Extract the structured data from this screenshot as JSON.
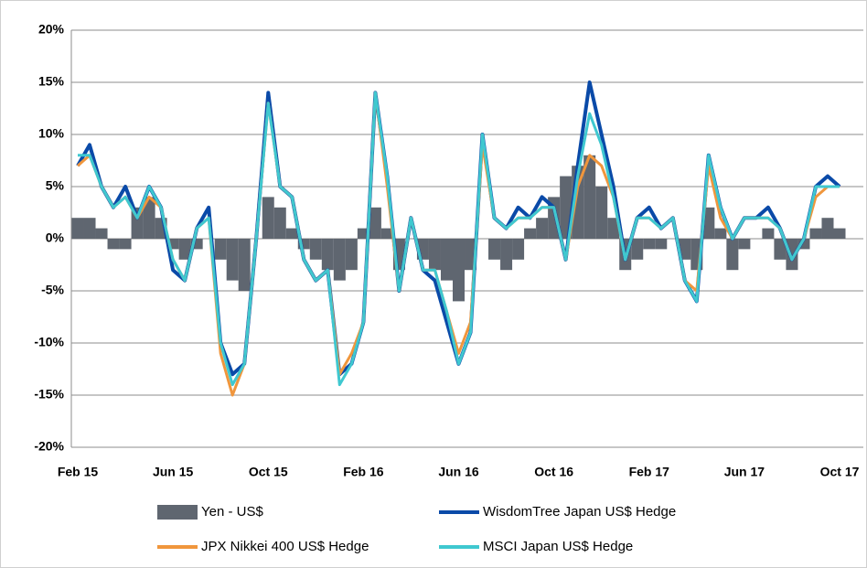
{
  "chart_data": {
    "type": "line",
    "categories": [
      "Feb 15",
      null,
      null,
      null,
      null,
      null,
      null,
      null,
      "Jun 15",
      null,
      null,
      null,
      null,
      null,
      null,
      null,
      "Oct 15",
      null,
      null,
      null,
      null,
      null,
      null,
      null,
      "Feb 16",
      null,
      null,
      null,
      null,
      null,
      null,
      null,
      "Jun 16",
      null,
      null,
      null,
      null,
      null,
      null,
      null,
      "Oct 16",
      null,
      null,
      null,
      null,
      null,
      null,
      null,
      "Feb 17",
      null,
      null,
      null,
      null,
      null,
      null,
      null,
      "Jun 17",
      null,
      null,
      null,
      null,
      null,
      null,
      null,
      "Oct 17"
    ],
    "series": [
      {
        "name": "Yen - US$",
        "type": "bar",
        "color": "#5f6670",
        "values": [
          2,
          2,
          1,
          -1,
          -1,
          3,
          4,
          2,
          -1,
          -2,
          -1,
          0,
          -2,
          -4,
          -5,
          0,
          4,
          3,
          1,
          -1,
          -2,
          -3,
          -4,
          -3,
          1,
          3,
          1,
          -3,
          0,
          -2,
          -3,
          -4,
          -6,
          -3,
          0,
          -2,
          -3,
          -2,
          1,
          2,
          4,
          6,
          7,
          8,
          5,
          2,
          -3,
          -2,
          -1,
          -1,
          0,
          -2,
          -3,
          3,
          1,
          -3,
          -1,
          0,
          1,
          -2,
          -3,
          -1,
          1,
          2,
          1
        ]
      },
      {
        "name": "WisdomTree Japan US$ Hedge",
        "color": "#0a4aa8",
        "values": [
          7,
          9,
          5,
          3,
          5,
          2,
          5,
          3,
          -3,
          -4,
          1,
          3,
          -10,
          -13,
          -12,
          0,
          14,
          5,
          4,
          -2,
          -4,
          -3,
          -13,
          -12,
          -8,
          14,
          6,
          -5,
          2,
          -3,
          -4,
          -8,
          -12,
          -9,
          10,
          2,
          1,
          3,
          2,
          4,
          3,
          -2,
          7,
          15,
          10,
          5,
          -2,
          2,
          3,
          1,
          2,
          -4,
          -6,
          8,
          3,
          0,
          2,
          2,
          3,
          1,
          -2,
          0,
          5,
          6,
          5
        ]
      },
      {
        "name": "JPX Nikkei 400 US$ Hedge",
        "color": "#f0963c",
        "values": [
          7,
          8,
          5,
          3,
          4,
          2,
          4,
          3,
          -2,
          -4,
          1,
          2,
          -11,
          -15,
          -12,
          0,
          13,
          5,
          4,
          -2,
          -4,
          -3,
          -13,
          -11,
          -8,
          14,
          5,
          -5,
          2,
          -3,
          -3,
          -7,
          -11,
          -8,
          9,
          2,
          1,
          2,
          2,
          3,
          3,
          -2,
          5,
          8,
          7,
          4,
          -2,
          2,
          2,
          1,
          2,
          -4,
          -5,
          7,
          2,
          0,
          2,
          2,
          2,
          1,
          -2,
          0,
          4,
          5,
          5
        ]
      },
      {
        "name": "MSCI Japan US$ Hedge",
        "color": "#3fc8d0",
        "values": [
          8,
          8,
          5,
          3,
          4,
          2,
          5,
          3,
          -2,
          -4,
          1,
          2,
          -10,
          -14,
          -12,
          0,
          13,
          5,
          4,
          -2,
          -4,
          -3,
          -14,
          -12,
          -8,
          14,
          6,
          -5,
          2,
          -3,
          -3,
          -7,
          -12,
          -9,
          10,
          2,
          1,
          2,
          2,
          3,
          3,
          -2,
          6,
          12,
          9,
          4,
          -2,
          2,
          2,
          1,
          2,
          -4,
          -6,
          8,
          3,
          0,
          2,
          2,
          2,
          1,
          -2,
          0,
          5,
          5,
          5
        ]
      }
    ],
    "ylim": [
      -20,
      20
    ],
    "yticks": [
      {
        "value": -20,
        "label": "-20%"
      },
      {
        "value": -15,
        "label": "-15%"
      },
      {
        "value": -10,
        "label": "-10%"
      },
      {
        "value": -5,
        "label": "-5%"
      },
      {
        "value": 0,
        "label": "0%"
      },
      {
        "value": 5,
        "label": "5%"
      },
      {
        "value": 10,
        "label": "10%"
      },
      {
        "value": 15,
        "label": "15%"
      },
      {
        "value": 20,
        "label": "20%"
      }
    ],
    "grid": true,
    "legend": "bottom"
  }
}
